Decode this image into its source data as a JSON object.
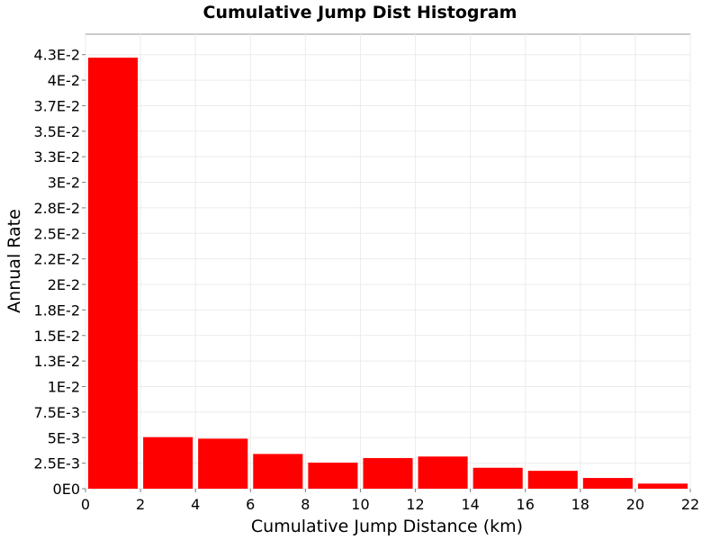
{
  "chart_data": {
    "type": "bar",
    "title": "Cumulative Jump Dist Histogram",
    "xlabel": "Cumulative Jump Distance (km)",
    "ylabel": "Annual Rate",
    "xlim": [
      0,
      22
    ],
    "ylim": [
      0,
      0.0445
    ],
    "grid": true,
    "bar_color": "#ff0000",
    "bins": [
      {
        "start": 0,
        "end": 2,
        "value": 0.0422
      },
      {
        "start": 2,
        "end": 4,
        "value": 0.00505
      },
      {
        "start": 4,
        "end": 6,
        "value": 0.0049
      },
      {
        "start": 6,
        "end": 8,
        "value": 0.0034
      },
      {
        "start": 8,
        "end": 10,
        "value": 0.00255
      },
      {
        "start": 10,
        "end": 12,
        "value": 0.003
      },
      {
        "start": 12,
        "end": 14,
        "value": 0.00315
      },
      {
        "start": 14,
        "end": 16,
        "value": 0.00205
      },
      {
        "start": 16,
        "end": 18,
        "value": 0.00175
      },
      {
        "start": 18,
        "end": 20,
        "value": 0.00105
      },
      {
        "start": 20,
        "end": 22,
        "value": 0.0005
      }
    ],
    "x_ticks": [
      {
        "value": 0,
        "label": "0"
      },
      {
        "value": 2,
        "label": "2"
      },
      {
        "value": 4,
        "label": "4"
      },
      {
        "value": 6,
        "label": "6"
      },
      {
        "value": 8,
        "label": "8"
      },
      {
        "value": 10,
        "label": "10"
      },
      {
        "value": 12,
        "label": "12"
      },
      {
        "value": 14,
        "label": "14"
      },
      {
        "value": 16,
        "label": "16"
      },
      {
        "value": 18,
        "label": "18"
      },
      {
        "value": 20,
        "label": "20"
      },
      {
        "value": 22,
        "label": "22"
      }
    ],
    "y_ticks": [
      {
        "value": 0,
        "label": "0E0"
      },
      {
        "value": 0.0025,
        "label": "2.5E-3"
      },
      {
        "value": 0.005,
        "label": "5E-3"
      },
      {
        "value": 0.0075,
        "label": "7.5E-3"
      },
      {
        "value": 0.01,
        "label": "1E-2"
      },
      {
        "value": 0.0125,
        "label": "1.3E-2"
      },
      {
        "value": 0.015,
        "label": "1.5E-2"
      },
      {
        "value": 0.0175,
        "label": "1.8E-2"
      },
      {
        "value": 0.02,
        "label": "2E-2"
      },
      {
        "value": 0.0225,
        "label": "2.2E-2"
      },
      {
        "value": 0.025,
        "label": "2.5E-2"
      },
      {
        "value": 0.0275,
        "label": "2.8E-2"
      },
      {
        "value": 0.03,
        "label": "3E-2"
      },
      {
        "value": 0.0325,
        "label": "3.3E-2"
      },
      {
        "value": 0.035,
        "label": "3.5E-2"
      },
      {
        "value": 0.0375,
        "label": "3.7E-2"
      },
      {
        "value": 0.04,
        "label": "4E-2"
      },
      {
        "value": 0.0425,
        "label": "4.3E-2"
      }
    ]
  }
}
